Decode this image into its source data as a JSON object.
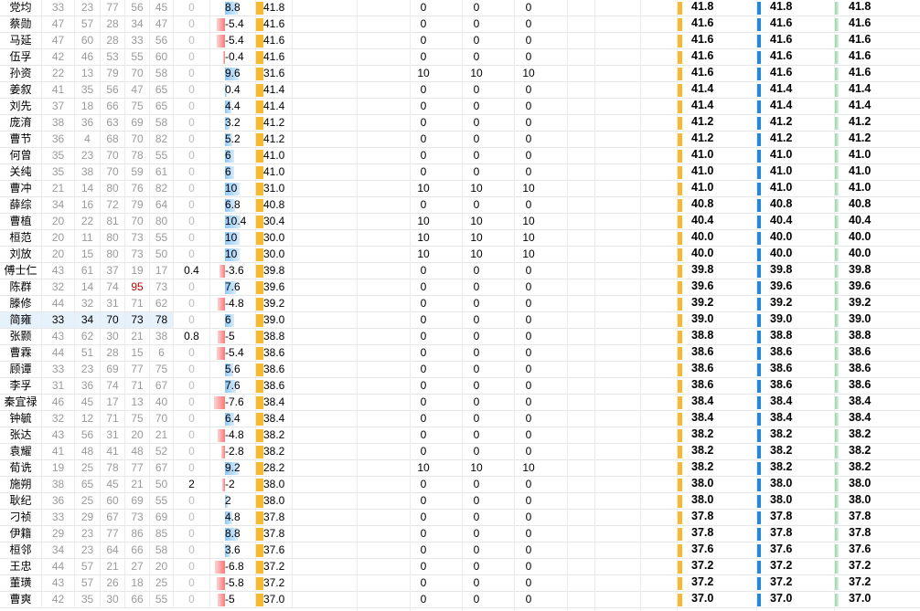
{
  "colors": {
    "score_bar": "#f9b92c",
    "blue_bar": "#1e88e5",
    "green_bar": "#7fd29a",
    "neg_bar": "#ff7777",
    "pos_bar": "#8cc8f5",
    "highlight": "#c00000"
  },
  "rows": [
    {
      "name": "党均",
      "s": [
        "33",
        "23",
        "77",
        "56",
        "45"
      ],
      "bonus": "0",
      "delta": "8.8",
      "score": "41.8",
      "v1": "0",
      "v2": "0",
      "v3": "0",
      "t1": "41.8",
      "t2": "41.8",
      "t3": "41.8"
    },
    {
      "name": "蔡勋",
      "s": [
        "47",
        "57",
        "28",
        "34",
        "47"
      ],
      "bonus": "0",
      "delta": "-5.4",
      "score": "41.6",
      "v1": "0",
      "v2": "0",
      "v3": "0",
      "t1": "41.6",
      "t2": "41.6",
      "t3": "41.6"
    },
    {
      "name": "马延",
      "s": [
        "47",
        "60",
        "28",
        "33",
        "56"
      ],
      "bonus": "0",
      "delta": "-5.4",
      "score": "41.6",
      "v1": "0",
      "v2": "0",
      "v3": "0",
      "t1": "41.6",
      "t2": "41.6",
      "t3": "41.6"
    },
    {
      "name": "伍孚",
      "s": [
        "42",
        "46",
        "53",
        "55",
        "60"
      ],
      "bonus": "0",
      "delta": "-0.4",
      "score": "41.6",
      "v1": "0",
      "v2": "0",
      "v3": "0",
      "t1": "41.6",
      "t2": "41.6",
      "t3": "41.6"
    },
    {
      "name": "孙资",
      "s": [
        "22",
        "13",
        "79",
        "70",
        "58"
      ],
      "bonus": "0",
      "delta": "9.6",
      "score": "31.6",
      "v1": "10",
      "v2": "10",
      "v3": "10",
      "t1": "41.6",
      "t2": "41.6",
      "t3": "41.6"
    },
    {
      "name": "姜叙",
      "s": [
        "41",
        "35",
        "56",
        "47",
        "65"
      ],
      "bonus": "0",
      "delta": "0.4",
      "score": "41.4",
      "v1": "0",
      "v2": "0",
      "v3": "0",
      "t1": "41.4",
      "t2": "41.4",
      "t3": "41.4"
    },
    {
      "name": "刘先",
      "s": [
        "37",
        "18",
        "66",
        "75",
        "65"
      ],
      "bonus": "0",
      "delta": "4.4",
      "score": "41.4",
      "v1": "0",
      "v2": "0",
      "v3": "0",
      "t1": "41.4",
      "t2": "41.4",
      "t3": "41.4"
    },
    {
      "name": "庞淯",
      "s": [
        "38",
        "36",
        "63",
        "69",
        "58"
      ],
      "bonus": "0",
      "delta": "3.2",
      "score": "41.2",
      "v1": "0",
      "v2": "0",
      "v3": "0",
      "t1": "41.2",
      "t2": "41.2",
      "t3": "41.2"
    },
    {
      "name": "曹节",
      "s": [
        "36",
        "4",
        "68",
        "70",
        "82"
      ],
      "bonus": "0",
      "delta": "5.2",
      "score": "41.2",
      "v1": "0",
      "v2": "0",
      "v3": "0",
      "t1": "41.2",
      "t2": "41.2",
      "t3": "41.2"
    },
    {
      "name": "何曾",
      "s": [
        "35",
        "23",
        "70",
        "78",
        "55"
      ],
      "bonus": "0",
      "delta": "6",
      "score": "41.0",
      "v1": "0",
      "v2": "0",
      "v3": "0",
      "t1": "41.0",
      "t2": "41.0",
      "t3": "41.0"
    },
    {
      "name": "关纯",
      "s": [
        "35",
        "38",
        "70",
        "59",
        "61"
      ],
      "bonus": "0",
      "delta": "6",
      "score": "41.0",
      "v1": "0",
      "v2": "0",
      "v3": "0",
      "t1": "41.0",
      "t2": "41.0",
      "t3": "41.0"
    },
    {
      "name": "曹冲",
      "s": [
        "21",
        "14",
        "80",
        "76",
        "82"
      ],
      "bonus": "0",
      "delta": "10",
      "score": "31.0",
      "v1": "10",
      "v2": "10",
      "v3": "10",
      "t1": "41.0",
      "t2": "41.0",
      "t3": "41.0"
    },
    {
      "name": "薛综",
      "s": [
        "34",
        "16",
        "72",
        "79",
        "64"
      ],
      "bonus": "0",
      "delta": "6.8",
      "score": "40.8",
      "v1": "0",
      "v2": "0",
      "v3": "0",
      "t1": "40.8",
      "t2": "40.8",
      "t3": "40.8"
    },
    {
      "name": "曹植",
      "s": [
        "20",
        "22",
        "81",
        "70",
        "80"
      ],
      "bonus": "0",
      "delta": "10.4",
      "score": "30.4",
      "v1": "10",
      "v2": "10",
      "v3": "10",
      "t1": "40.4",
      "t2": "40.4",
      "t3": "40.4"
    },
    {
      "name": "桓范",
      "s": [
        "20",
        "11",
        "80",
        "73",
        "55"
      ],
      "bonus": "0",
      "delta": "10",
      "score": "30.0",
      "v1": "10",
      "v2": "10",
      "v3": "10",
      "t1": "40.0",
      "t2": "40.0",
      "t3": "40.0"
    },
    {
      "name": "刘放",
      "s": [
        "20",
        "15",
        "80",
        "73",
        "50"
      ],
      "bonus": "0",
      "delta": "10",
      "score": "30.0",
      "v1": "10",
      "v2": "10",
      "v3": "10",
      "t1": "40.0",
      "t2": "40.0",
      "t3": "40.0"
    },
    {
      "name": "傅士仁",
      "s": [
        "43",
        "61",
        "37",
        "19",
        "17"
      ],
      "bonus": "0.4",
      "delta": "-3.6",
      "score": "39.8",
      "v1": "0",
      "v2": "0",
      "v3": "0",
      "t1": "39.8",
      "t2": "39.8",
      "t3": "39.8"
    },
    {
      "name": "陈群",
      "s": [
        "32",
        "14",
        "74",
        "95",
        "73"
      ],
      "bonus": "0",
      "delta": "7.6",
      "score": "39.6",
      "v1": "0",
      "v2": "0",
      "v3": "0",
      "t1": "39.6",
      "t2": "39.6",
      "t3": "39.6",
      "hl": 3
    },
    {
      "name": "滕修",
      "s": [
        "44",
        "32",
        "31",
        "71",
        "62"
      ],
      "bonus": "0",
      "delta": "-4.8",
      "score": "39.2",
      "v1": "0",
      "v2": "0",
      "v3": "0",
      "t1": "39.2",
      "t2": "39.2",
      "t3": "39.2"
    },
    {
      "name": "简雍",
      "s": [
        "33",
        "34",
        "70",
        "73",
        "78"
      ],
      "bonus": "0",
      "delta": "6",
      "score": "39.0",
      "v1": "0",
      "v2": "0",
      "v3": "0",
      "t1": "39.0",
      "t2": "39.0",
      "t3": "39.0",
      "sel": true
    },
    {
      "name": "张颢",
      "s": [
        "43",
        "62",
        "30",
        "21",
        "38"
      ],
      "bonus": "0.8",
      "delta": "-5",
      "score": "38.8",
      "v1": "0",
      "v2": "0",
      "v3": "0",
      "t1": "38.8",
      "t2": "38.8",
      "t3": "38.8"
    },
    {
      "name": "曹霖",
      "s": [
        "44",
        "51",
        "28",
        "15",
        "6"
      ],
      "bonus": "0",
      "delta": "-5.4",
      "score": "38.6",
      "v1": "0",
      "v2": "0",
      "v3": "0",
      "t1": "38.6",
      "t2": "38.6",
      "t3": "38.6"
    },
    {
      "name": "顾谭",
      "s": [
        "33",
        "23",
        "69",
        "77",
        "75"
      ],
      "bonus": "0",
      "delta": "5.6",
      "score": "38.6",
      "v1": "0",
      "v2": "0",
      "v3": "0",
      "t1": "38.6",
      "t2": "38.6",
      "t3": "38.6"
    },
    {
      "name": "李孚",
      "s": [
        "31",
        "36",
        "74",
        "71",
        "67"
      ],
      "bonus": "0",
      "delta": "7.6",
      "score": "38.6",
      "v1": "0",
      "v2": "0",
      "v3": "0",
      "t1": "38.6",
      "t2": "38.6",
      "t3": "38.6"
    },
    {
      "name": "秦宜禄",
      "s": [
        "46",
        "45",
        "17",
        "13",
        "40"
      ],
      "bonus": "0",
      "delta": "-7.6",
      "score": "38.4",
      "v1": "0",
      "v2": "0",
      "v3": "0",
      "t1": "38.4",
      "t2": "38.4",
      "t3": "38.4"
    },
    {
      "name": "钟毓",
      "s": [
        "32",
        "12",
        "71",
        "75",
        "70"
      ],
      "bonus": "0",
      "delta": "6.4",
      "score": "38.4",
      "v1": "0",
      "v2": "0",
      "v3": "0",
      "t1": "38.4",
      "t2": "38.4",
      "t3": "38.4"
    },
    {
      "name": "张达",
      "s": [
        "43",
        "56",
        "31",
        "20",
        "21"
      ],
      "bonus": "0",
      "delta": "-4.8",
      "score": "38.2",
      "v1": "0",
      "v2": "0",
      "v3": "0",
      "t1": "38.2",
      "t2": "38.2",
      "t3": "38.2"
    },
    {
      "name": "袁耀",
      "s": [
        "41",
        "48",
        "41",
        "48",
        "52"
      ],
      "bonus": "0",
      "delta": "-2.8",
      "score": "38.2",
      "v1": "0",
      "v2": "0",
      "v3": "0",
      "t1": "38.2",
      "t2": "38.2",
      "t3": "38.2"
    },
    {
      "name": "荀诜",
      "s": [
        "19",
        "25",
        "78",
        "77",
        "67"
      ],
      "bonus": "0",
      "delta": "9.2",
      "score": "28.2",
      "v1": "10",
      "v2": "10",
      "v3": "10",
      "t1": "38.2",
      "t2": "38.2",
      "t3": "38.2"
    },
    {
      "name": "施朔",
      "s": [
        "38",
        "65",
        "45",
        "21",
        "50"
      ],
      "bonus": "2",
      "delta": "-2",
      "score": "38.0",
      "v1": "0",
      "v2": "0",
      "v3": "0",
      "t1": "38.0",
      "t2": "38.0",
      "t3": "38.0"
    },
    {
      "name": "耿纪",
      "s": [
        "36",
        "25",
        "60",
        "69",
        "55"
      ],
      "bonus": "0",
      "delta": "2",
      "score": "38.0",
      "v1": "0",
      "v2": "0",
      "v3": "0",
      "t1": "38.0",
      "t2": "38.0",
      "t3": "38.0"
    },
    {
      "name": "刁祯",
      "s": [
        "33",
        "29",
        "67",
        "73",
        "69"
      ],
      "bonus": "0",
      "delta": "4.8",
      "score": "37.8",
      "v1": "0",
      "v2": "0",
      "v3": "0",
      "t1": "37.8",
      "t2": "37.8",
      "t3": "37.8"
    },
    {
      "name": "伊籍",
      "s": [
        "29",
        "23",
        "77",
        "86",
        "85"
      ],
      "bonus": "0",
      "delta": "8.8",
      "score": "37.8",
      "v1": "0",
      "v2": "0",
      "v3": "0",
      "t1": "37.8",
      "t2": "37.8",
      "t3": "37.8"
    },
    {
      "name": "桓邻",
      "s": [
        "34",
        "23",
        "64",
        "66",
        "58"
      ],
      "bonus": "0",
      "delta": "3.6",
      "score": "37.6",
      "v1": "0",
      "v2": "0",
      "v3": "0",
      "t1": "37.6",
      "t2": "37.6",
      "t3": "37.6"
    },
    {
      "name": "王忠",
      "s": [
        "44",
        "57",
        "21",
        "27",
        "20"
      ],
      "bonus": "0",
      "delta": "-6.8",
      "score": "37.2",
      "v1": "0",
      "v2": "0",
      "v3": "0",
      "t1": "37.2",
      "t2": "37.2",
      "t3": "37.2"
    },
    {
      "name": "董璜",
      "s": [
        "43",
        "57",
        "26",
        "18",
        "25"
      ],
      "bonus": "0",
      "delta": "-5.8",
      "score": "37.2",
      "v1": "0",
      "v2": "0",
      "v3": "0",
      "t1": "37.2",
      "t2": "37.2",
      "t3": "37.2"
    },
    {
      "name": "曹爽",
      "s": [
        "42",
        "35",
        "30",
        "66",
        "55"
      ],
      "bonus": "0",
      "delta": "-5",
      "score": "37.0",
      "v1": "0",
      "v2": "0",
      "v3": "0",
      "t1": "37.0",
      "t2": "37.0",
      "t3": "37.0"
    }
  ]
}
